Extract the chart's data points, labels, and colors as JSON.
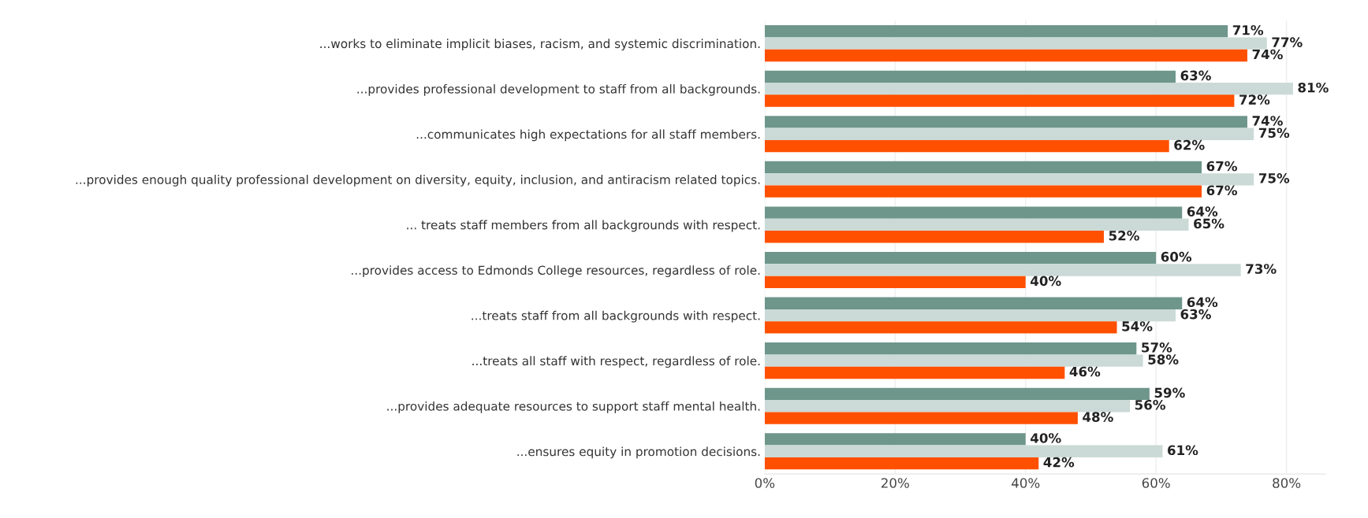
{
  "chart_data": {
    "type": "bar",
    "orientation": "horizontal",
    "categories": [
      "...works to eliminate implicit biases, racism, and systemic discrimination.",
      "...provides professional development to staff from all backgrounds.",
      "...communicates high expectations for all staff members.",
      "...provides enough quality professional development on diversity, equity, inclusion, and antiracism related topics.",
      "... treats staff members from all backgrounds with respect.",
      "...provides access to Edmonds College resources, regardless of role.",
      "...treats staff from all backgrounds with respect.",
      "...treats all staff with respect, regardless of role.",
      "...provides adequate resources to support staff mental health.",
      "...ensures equity in promotion decisions."
    ],
    "series": [
      {
        "color": "#6e968b",
        "values": [
          71,
          63,
          74,
          67,
          64,
          60,
          64,
          57,
          59,
          40
        ],
        "value_labels": [
          "71%",
          "63%",
          "74%",
          "67%",
          "64%",
          "60%",
          "64%",
          "57%",
          "59%",
          "40%"
        ]
      },
      {
        "color": "#cbdad6",
        "values": [
          77,
          81,
          75,
          75,
          65,
          73,
          63,
          58,
          56,
          61
        ],
        "value_labels": [
          "77%",
          "81%",
          "75%",
          "75%",
          "65%",
          "73%",
          "63%",
          "58%",
          "56%",
          "61%"
        ]
      },
      {
        "color": "#ff5000",
        "values": [
          74,
          72,
          62,
          67,
          52,
          40,
          54,
          46,
          48,
          42
        ],
        "value_labels": [
          "74%",
          "72%",
          "62%",
          "67%",
          "52%",
          "40%",
          "54%",
          "46%",
          "48%",
          "42%"
        ]
      }
    ],
    "xlim": [
      0,
      86
    ],
    "xticks": [
      {
        "value": 0,
        "label": "0%"
      },
      {
        "value": 20,
        "label": "20%"
      },
      {
        "value": 40,
        "label": "40%"
      },
      {
        "value": 60,
        "label": "60%"
      },
      {
        "value": 80,
        "label": "80%"
      }
    ],
    "grid": "x",
    "legend": false
  }
}
